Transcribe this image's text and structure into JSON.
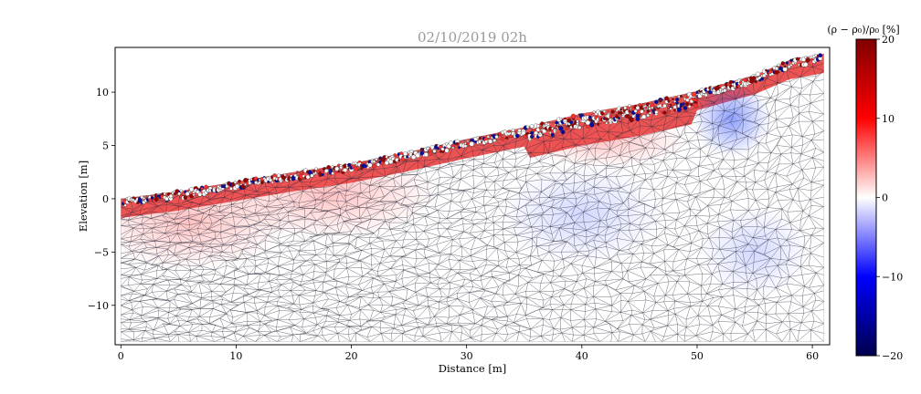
{
  "chart_data": {
    "type": "heatmap",
    "title": "02/10/2019 02h",
    "xlabel": "Distance [m]",
    "ylabel": "Elevation [m]",
    "xlim": [
      -0.5,
      61.5
    ],
    "ylim": [
      -13.7,
      14.2
    ],
    "xticks": [
      0,
      10,
      20,
      30,
      40,
      50,
      60
    ],
    "yticks": [
      -10,
      -5,
      0,
      5,
      10
    ],
    "grid": false,
    "colorbar": {
      "label": "(ρ − ρ₀)/ρ₀ [%]",
      "range": [
        -20,
        20
      ],
      "ticks": [
        -20,
        -10,
        0,
        10,
        20
      ],
      "colormap": "seismic"
    },
    "surface_profile": {
      "x": [
        0,
        5,
        10,
        15,
        20,
        25,
        30,
        35,
        40,
        45,
        50,
        55,
        58,
        61
      ],
      "y": [
        0.0,
        0.7,
        1.6,
        2.5,
        3.3,
        4.4,
        5.6,
        6.7,
        8.0,
        8.9,
        10.1,
        11.6,
        13.0,
        13.6
      ]
    },
    "bottom_elevation": -13.4,
    "mesh": "triangular"
  },
  "colors": {
    "positive": "#800000",
    "negative": "#00004c",
    "neutral": "#ffffff",
    "mesh_lines": "#2a2a3a"
  }
}
